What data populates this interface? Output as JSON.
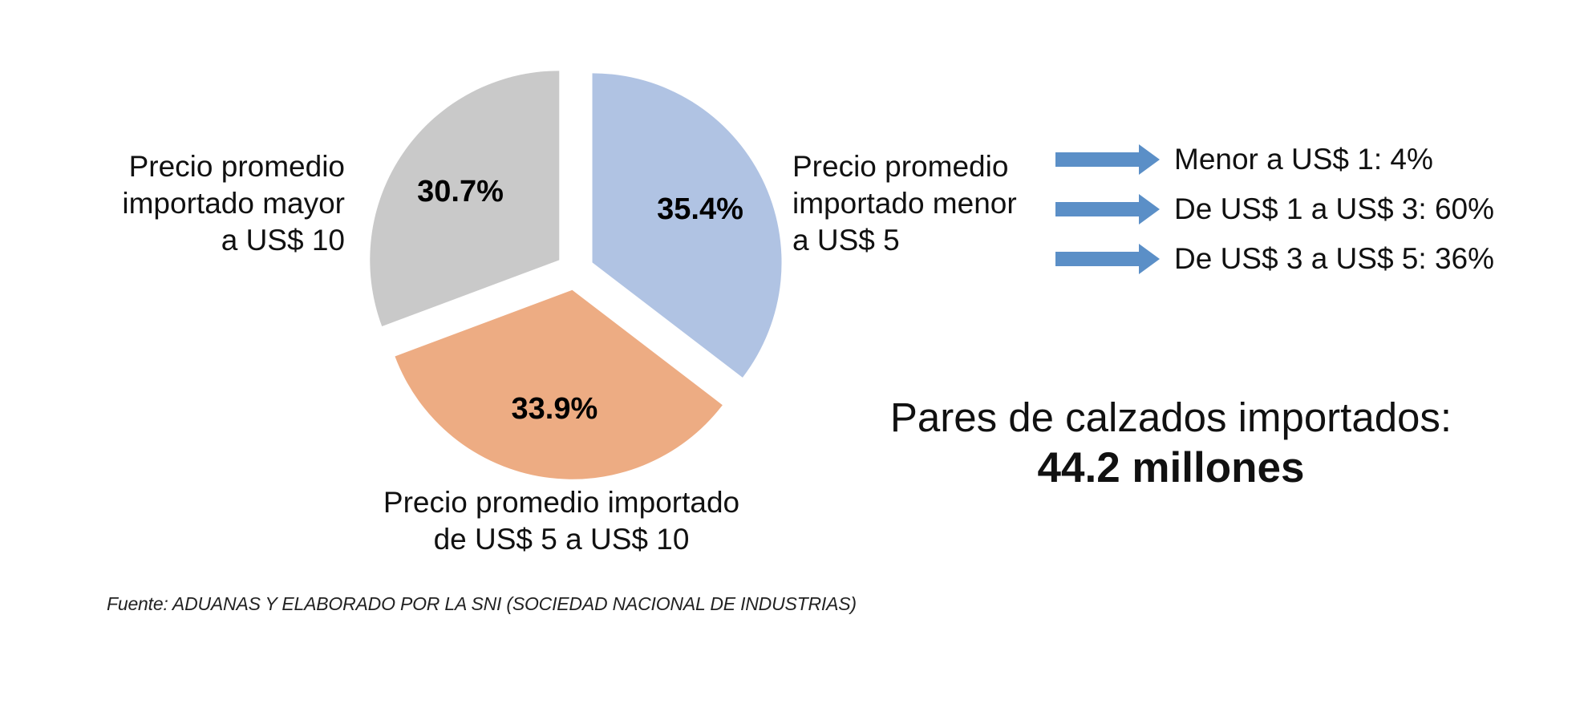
{
  "chart_data": {
    "type": "pie",
    "title": "",
    "slices": [
      {
        "label_lines": [
          "Precio promedio",
          "importado menor",
          "a US$ 5"
        ],
        "value": 35.4,
        "value_label": "35.4%",
        "color": "#b0c3e3"
      },
      {
        "label_lines": [
          "Precio promedio importado",
          "de US$ 5 a US$ 10"
        ],
        "value": 33.9,
        "value_label": "33.9%",
        "color": "#edac83"
      },
      {
        "label_lines": [
          "Precio promedio",
          "importado mayor",
          "a US$ 10"
        ],
        "value": 30.7,
        "value_label": "30.7%",
        "color": "#c9c9c9"
      }
    ]
  },
  "breakdown": {
    "arrow_color": "#5b8fc7",
    "items": [
      "Menor a US$ 1: 4%",
      "De US$ 1 a US$ 3: 60%",
      "De US$ 3 a US$ 5: 36%"
    ]
  },
  "total": {
    "title": "Pares de calzados importados:",
    "value": "44.2 millones"
  },
  "source": "Fuente: ADUANAS Y ELABORADO POR LA SNI (SOCIEDAD NACIONAL DE INDUSTRIAS)"
}
